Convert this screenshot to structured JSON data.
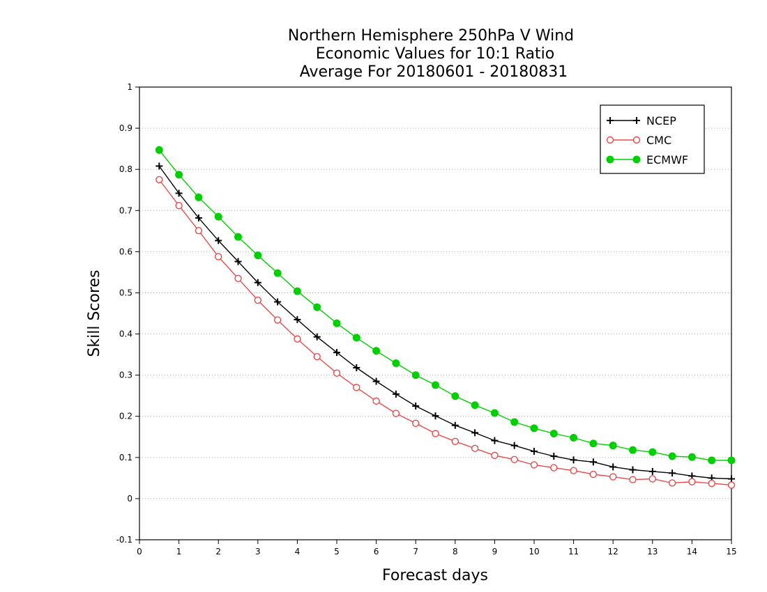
{
  "chart_data": {
    "type": "line",
    "title": [
      "Northern Hemisphere 250hPa V Wind",
      "Economic Values for 10:1 Ratio",
      "Average For 20180601 - 20180831"
    ],
    "xlabel": "Forecast days",
    "ylabel": "Skill Scores",
    "xlim": [
      0,
      15
    ],
    "ylim": [
      -0.1,
      1
    ],
    "xticks": [
      0,
      1,
      2,
      3,
      4,
      5,
      6,
      7,
      8,
      9,
      10,
      11,
      12,
      13,
      14,
      15
    ],
    "xtick_labels": [
      "0",
      "1",
      "2",
      "3",
      "4",
      "5",
      "6",
      "7",
      "8",
      "9",
      "10",
      "11",
      "12",
      "13",
      "14",
      "15"
    ],
    "yticks": [
      -0.1,
      0,
      0.1,
      0.2,
      0.3,
      0.4,
      0.5,
      0.6,
      0.7,
      0.8,
      0.9,
      1
    ],
    "ytick_labels": [
      "-0.1",
      "0",
      "0.1",
      "0.2",
      "0.3",
      "0.4",
      "0.5",
      "0.6",
      "0.7",
      "0.8",
      "0.9",
      "1"
    ],
    "grid": true,
    "legend_position": "top-right",
    "x": [
      0.5,
      1,
      1.5,
      2,
      2.5,
      3,
      3.5,
      4,
      4.5,
      5,
      5.5,
      6,
      6.5,
      7,
      7.5,
      8,
      8.5,
      9,
      9.5,
      10,
      10.5,
      11,
      11.5,
      12,
      12.5,
      13,
      13.5,
      14,
      14.5,
      15
    ],
    "series": [
      {
        "name": "NCEP",
        "color": "#000000",
        "marker": "plus",
        "values": [
          0.808,
          0.742,
          0.682,
          0.627,
          0.576,
          0.525,
          0.478,
          0.435,
          0.393,
          0.355,
          0.318,
          0.285,
          0.254,
          0.225,
          0.201,
          0.178,
          0.16,
          0.141,
          0.129,
          0.115,
          0.103,
          0.094,
          0.089,
          0.077,
          0.07,
          0.066,
          0.062,
          0.055,
          0.05,
          0.048
        ]
      },
      {
        "name": "CMC",
        "color": "#e84a4a",
        "marker": "open-circle",
        "values": [
          0.775,
          0.712,
          0.651,
          0.588,
          0.535,
          0.482,
          0.434,
          0.388,
          0.345,
          0.305,
          0.27,
          0.237,
          0.207,
          0.183,
          0.158,
          0.139,
          0.122,
          0.105,
          0.095,
          0.082,
          0.075,
          0.068,
          0.059,
          0.053,
          0.046,
          0.048,
          0.038,
          0.041,
          0.037,
          0.033
        ]
      },
      {
        "name": "ECMWF",
        "color": "#00d000",
        "marker": "filled-circle",
        "values": [
          0.847,
          0.787,
          0.732,
          0.685,
          0.636,
          0.591,
          0.548,
          0.504,
          0.465,
          0.426,
          0.391,
          0.359,
          0.329,
          0.3,
          0.276,
          0.249,
          0.227,
          0.208,
          0.186,
          0.171,
          0.158,
          0.148,
          0.134,
          0.129,
          0.118,
          0.113,
          0.103,
          0.101,
          0.093,
          0.093
        ]
      }
    ]
  }
}
